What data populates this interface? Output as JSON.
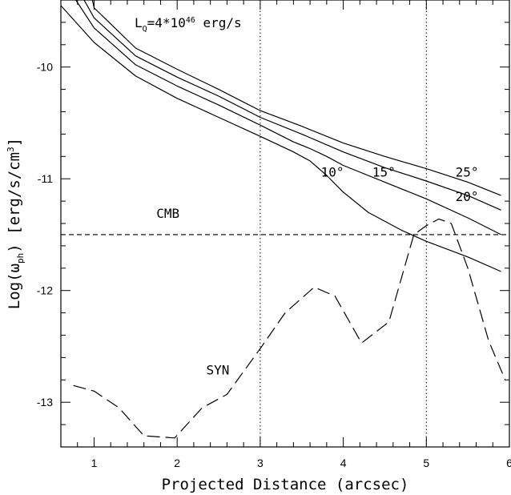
{
  "chart_data": {
    "type": "line",
    "xlabel": "Projected Distance (arcsec)",
    "ylabel": {
      "pre": "Log(ω",
      "sub": "ph",
      "mid": ") [erg/s/cm",
      "sup": "3",
      "post": "]"
    },
    "xlim": [
      0.6,
      6.0
    ],
    "ylim": [
      -13.4,
      -9.4
    ],
    "x_ticks": [
      1,
      2,
      3,
      4,
      5,
      6
    ],
    "y_ticks": [
      -10,
      -11,
      -12,
      -13
    ],
    "grid": false,
    "vertical_lines": [
      3,
      5
    ],
    "hline": {
      "y": -11.5,
      "label": "CMB"
    },
    "luminosity_label": {
      "base": "L",
      "sub": "Q",
      "mid": "=4*10",
      "sup": "46",
      "post": " erg/s"
    },
    "series": [
      {
        "name": "10°",
        "points": [
          [
            0.6,
            -9.45
          ],
          [
            1.0,
            -9.78
          ],
          [
            1.5,
            -10.08
          ],
          [
            2.0,
            -10.28
          ],
          [
            2.5,
            -10.45
          ],
          [
            3.0,
            -10.62
          ],
          [
            3.4,
            -10.76
          ],
          [
            3.6,
            -10.84
          ],
          [
            3.8,
            -10.97
          ],
          [
            4.0,
            -11.12
          ],
          [
            4.3,
            -11.3
          ],
          [
            4.7,
            -11.46
          ],
          [
            5.0,
            -11.56
          ],
          [
            5.5,
            -11.7
          ],
          [
            5.9,
            -11.83
          ]
        ]
      },
      {
        "name": "15°",
        "points": [
          [
            0.78,
            -9.4
          ],
          [
            1.0,
            -9.65
          ],
          [
            1.5,
            -9.98
          ],
          [
            2.0,
            -10.17
          ],
          [
            2.5,
            -10.34
          ],
          [
            3.0,
            -10.52
          ],
          [
            3.4,
            -10.67
          ],
          [
            3.6,
            -10.73
          ],
          [
            3.8,
            -10.8
          ],
          [
            4.0,
            -10.88
          ],
          [
            4.5,
            -11.03
          ],
          [
            5.0,
            -11.18
          ],
          [
            5.5,
            -11.35
          ],
          [
            5.9,
            -11.5
          ]
        ]
      },
      {
        "name": "20°",
        "points": [
          [
            0.88,
            -9.4
          ],
          [
            1.0,
            -9.56
          ],
          [
            1.5,
            -9.9
          ],
          [
            2.0,
            -10.09
          ],
          [
            2.5,
            -10.26
          ],
          [
            3.0,
            -10.45
          ],
          [
            3.5,
            -10.6
          ],
          [
            4.0,
            -10.76
          ],
          [
            4.5,
            -10.9
          ],
          [
            5.0,
            -11.02
          ],
          [
            5.5,
            -11.15
          ],
          [
            5.9,
            -11.28
          ]
        ]
      },
      {
        "name": "25°",
        "points": [
          [
            0.98,
            -9.4
          ],
          [
            1.0,
            -9.47
          ],
          [
            1.5,
            -9.83
          ],
          [
            2.0,
            -10.02
          ],
          [
            2.5,
            -10.2
          ],
          [
            3.0,
            -10.39
          ],
          [
            3.5,
            -10.53
          ],
          [
            4.0,
            -10.68
          ],
          [
            4.5,
            -10.8
          ],
          [
            5.0,
            -10.91
          ],
          [
            5.5,
            -11.03
          ],
          [
            5.9,
            -11.15
          ]
        ]
      },
      {
        "name": "SYN",
        "dashed": true,
        "points": [
          [
            0.75,
            -12.85
          ],
          [
            1.0,
            -12.9
          ],
          [
            1.3,
            -13.05
          ],
          [
            1.6,
            -13.3
          ],
          [
            1.97,
            -13.32
          ],
          [
            2.3,
            -13.05
          ],
          [
            2.6,
            -12.93
          ],
          [
            3.0,
            -12.52
          ],
          [
            3.3,
            -12.2
          ],
          [
            3.65,
            -11.97
          ],
          [
            3.9,
            -12.05
          ],
          [
            4.22,
            -12.47
          ],
          [
            4.55,
            -12.28
          ],
          [
            4.85,
            -11.5
          ],
          [
            5.0,
            -11.42
          ],
          [
            5.15,
            -11.36
          ],
          [
            5.3,
            -11.4
          ],
          [
            5.5,
            -11.8
          ],
          [
            5.75,
            -12.45
          ],
          [
            5.95,
            -12.8
          ]
        ]
      }
    ],
    "curve_labels": [
      {
        "text": "10°",
        "x": 3.73,
        "y": -10.98
      },
      {
        "text": "15°",
        "x": 4.35,
        "y": -10.98
      },
      {
        "text": "25°",
        "x": 5.35,
        "y": -10.98
      },
      {
        "text": "20°",
        "x": 5.35,
        "y": -11.2
      }
    ],
    "text_labels": [
      {
        "text": "CMB",
        "x": 1.75,
        "y": -11.35
      },
      {
        "text": "SYN",
        "x": 2.35,
        "y": -12.75
      }
    ]
  }
}
